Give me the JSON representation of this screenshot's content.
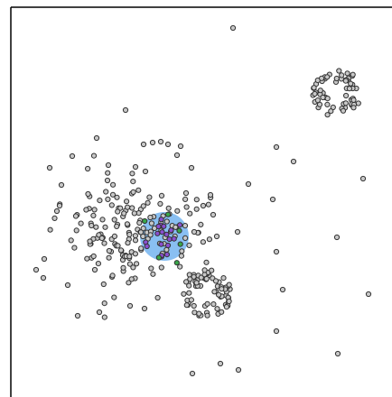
{
  "chart_data": {
    "type": "scatter",
    "title": "",
    "xlabel": "",
    "ylabel": "",
    "grid": false,
    "legend": "none",
    "colors": {
      "point_fill": "#c8c8c8",
      "point_stroke": "#333333",
      "highlight_fill": "#74b4f0",
      "purple_point": "#8a4fd0",
      "green_point": "#3aa84a",
      "frame": "#000000"
    },
    "seed": 17,
    "clusters": [
      {
        "name": "left-cloud",
        "cx": 148,
        "cy": 252,
        "sx": 40,
        "sy": 33,
        "count": 170
      },
      {
        "name": "ring-bottom",
        "cx": 229,
        "cy": 326,
        "r1": 8,
        "r2": 27,
        "count": 70
      },
      {
        "name": "ring-top-right",
        "cx": 373,
        "cy": 103,
        "r1": 6,
        "r2": 27,
        "count": 62
      }
    ],
    "highlight": {
      "cx": 182,
      "cy": 262,
      "r": 27,
      "purple_count": 18,
      "green_count": 6
    },
    "scattered_points": [
      [
        258,
        31
      ],
      [
        139,
        122
      ],
      [
        107,
        153
      ],
      [
        55,
        186
      ],
      [
        68,
        205
      ],
      [
        63,
        234
      ],
      [
        66,
        228
      ],
      [
        40,
        299
      ],
      [
        49,
        287
      ],
      [
        48,
        308
      ],
      [
        86,
        350
      ],
      [
        110,
        346
      ],
      [
        144,
        339
      ],
      [
        160,
        342
      ],
      [
        306,
        163
      ],
      [
        325,
        179
      ],
      [
        275,
        204
      ],
      [
        302,
        221
      ],
      [
        263,
        257
      ],
      [
        240,
        262
      ],
      [
        306,
        279
      ],
      [
        373,
        263
      ],
      [
        402,
        198
      ],
      [
        313,
        321
      ],
      [
        408,
        326
      ],
      [
        306,
        367
      ],
      [
        374,
        392
      ],
      [
        244,
        403
      ],
      [
        264,
        410
      ],
      [
        213,
        414
      ],
      [
        200,
        162
      ],
      [
        196,
        172
      ],
      [
        186,
        160
      ],
      [
        178,
        157
      ],
      [
        169,
        158
      ],
      [
        159,
        160
      ],
      [
        161,
        190
      ],
      [
        150,
        185
      ],
      [
        212,
        186
      ],
      [
        120,
        183
      ],
      [
        119,
        200
      ],
      [
        80,
        173
      ],
      [
        236,
        238
      ],
      [
        225,
        228
      ],
      [
        233,
        216
      ],
      [
        206,
        214
      ],
      [
        219,
        258
      ],
      [
        215,
        257
      ]
    ]
  }
}
